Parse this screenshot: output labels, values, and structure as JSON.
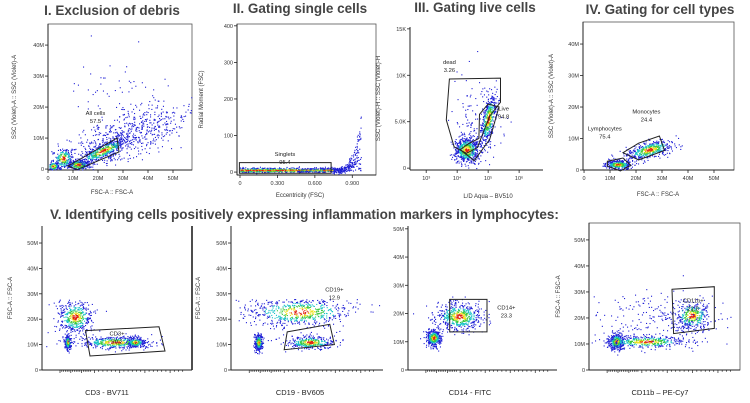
{
  "figure": {
    "section_v_title": "V. Identifying cells positively expressing inflammation markers in lymphocytes:"
  },
  "colors": {
    "density_low": "#1f1fd6",
    "density_mid": "#19c2c8",
    "density_midhigh": "#3cc83c",
    "density_high": "#f0e020",
    "density_peak": "#e02010",
    "gate": "#222222",
    "title": "#444444"
  },
  "chart_data": [
    {
      "type": "scatter",
      "title": "I. Exclusion of debris",
      "xlabel": "FSC-A :: FSC-A",
      "ylabel": "SSC (Violet)-A :: SSC (Violet)-A",
      "xscale": "linear",
      "xlim": [
        0,
        57.6
      ],
      "ylim": [
        -0.3,
        46.8
      ],
      "xticks": [
        {
          "value": 0,
          "label": "0"
        },
        {
          "value": 10,
          "label": "10M"
        },
        {
          "value": 20,
          "label": "20M"
        },
        {
          "value": 30,
          "label": "30M"
        },
        {
          "value": 40,
          "label": "40M"
        },
        {
          "value": 50,
          "label": "50M"
        }
      ],
      "yticks": [
        {
          "value": 0,
          "label": "0"
        },
        {
          "value": 10,
          "label": "10M"
        },
        {
          "value": 20,
          "label": "20M"
        },
        {
          "value": 30,
          "label": "30M"
        },
        {
          "value": 40,
          "label": "40M"
        }
      ],
      "gates": [
        {
          "name": "All cells",
          "value": "57.5"
        }
      ]
    },
    {
      "type": "scatter",
      "title": "II. Gating single cells",
      "xlabel": "Eccentricity (FSC)",
      "ylabel": "Radial Moment (FSC)",
      "xscale": "linear",
      "xlim": [
        -0.024,
        1.09
      ],
      "ylim": [
        -8,
        405
      ],
      "xticks": [
        {
          "value": 0,
          "label": "0"
        },
        {
          "value": 0.3,
          "label": "0.300"
        },
        {
          "value": 0.6,
          "label": "0.600"
        },
        {
          "value": 0.9,
          "label": "0.900"
        }
      ],
      "yticks": [
        {
          "value": 0,
          "label": "0"
        },
        {
          "value": 100,
          "label": "100"
        },
        {
          "value": 200,
          "label": "200"
        },
        {
          "value": 300,
          "label": "300"
        },
        {
          "value": 400,
          "label": "400"
        }
      ],
      "gates": [
        {
          "name": "Singlets",
          "value": "95.4"
        }
      ]
    },
    {
      "type": "scatter",
      "title": "III. Gating live cells",
      "xlabel": "L/D Aqua – BV510",
      "ylabel": "SSC (Violet)-H :: SSC (Violet)-H",
      "xscale": "log",
      "xlim": [
        300,
        5900000
      ],
      "ylim": [
        -0.2,
        15.2
      ],
      "xticks": [
        {
          "value": 1000,
          "label": "10³"
        },
        {
          "value": 10000,
          "label": "10⁴"
        },
        {
          "value": 100000,
          "label": "10⁵"
        },
        {
          "value": 1000000,
          "label": "10⁶"
        }
      ],
      "yticks": [
        {
          "value": 0,
          "label": "0"
        },
        {
          "value": 5,
          "label": "5.0K"
        },
        {
          "value": 10,
          "label": "10K"
        },
        {
          "value": 15,
          "label": "15K"
        }
      ],
      "gates": [
        {
          "name": "dead",
          "value": "3.26"
        },
        {
          "name": "Live",
          "value": "94.8"
        }
      ]
    },
    {
      "type": "scatter",
      "title": "IV. Gating for cell types",
      "xlabel": "FSC-A :: FSC-A",
      "ylabel": "SSC (Violet)-A :: SSC (Violet)-A",
      "xscale": "linear",
      "xlim": [
        -0.4,
        57.7
      ],
      "ylim": [
        0,
        47
      ],
      "xticks": [
        {
          "value": 0,
          "label": "0"
        },
        {
          "value": 10,
          "label": "10M"
        },
        {
          "value": 20,
          "label": "20M"
        },
        {
          "value": 30,
          "label": "30M"
        },
        {
          "value": 40,
          "label": "40M"
        },
        {
          "value": 50,
          "label": "50M"
        }
      ],
      "yticks": [
        {
          "value": 0,
          "label": "0"
        },
        {
          "value": 10,
          "label": "10M"
        },
        {
          "value": 20,
          "label": "20M"
        },
        {
          "value": 30,
          "label": "30M"
        },
        {
          "value": 40,
          "label": "40M"
        }
      ],
      "gates": [
        {
          "name": "Lymphocytes",
          "value": "75.4"
        },
        {
          "name": "Monocytes",
          "value": "24.4"
        }
      ]
    },
    {
      "type": "scatter",
      "title": "",
      "xlabel": "CD3 - BV711",
      "ylabel": "FSC-A :: FSC-A",
      "xscale": "biexponential",
      "ylim": [
        0,
        56.7
      ],
      "yticks": [
        {
          "value": 0,
          "label": "0"
        },
        {
          "value": 10,
          "label": "10M"
        },
        {
          "value": 20,
          "label": "20M"
        },
        {
          "value": 30,
          "label": "30M"
        },
        {
          "value": 40,
          "label": "40M"
        },
        {
          "value": 50,
          "label": "50M"
        }
      ],
      "gates": [
        {
          "name": "CD3+",
          "value": "59.2"
        }
      ]
    },
    {
      "type": "scatter",
      "title": "",
      "xlabel": "CD19 - BV605",
      "ylabel": "FSC-A :: FSC-A",
      "xscale": "biexponential",
      "ylim": [
        0,
        56.7
      ],
      "yticks": [
        {
          "value": 0,
          "label": "0"
        },
        {
          "value": 10,
          "label": "10M"
        },
        {
          "value": 20,
          "label": "20M"
        },
        {
          "value": 30,
          "label": "30M"
        },
        {
          "value": 40,
          "label": "40M"
        },
        {
          "value": 50,
          "label": "50M"
        }
      ],
      "gates": [
        {
          "name": "CD19+",
          "value": "12.9"
        }
      ]
    },
    {
      "type": "scatter",
      "title": "",
      "xlabel": "CD14 - FITC",
      "ylabel": "",
      "xscale": "biexponential",
      "ylim": [
        0,
        51
      ],
      "yticks": [
        {
          "value": 0,
          "label": "0"
        },
        {
          "value": 10,
          "label": "10M"
        },
        {
          "value": 20,
          "label": "20M"
        },
        {
          "value": 30,
          "label": "30M"
        },
        {
          "value": 40,
          "label": "40M"
        },
        {
          "value": 50,
          "label": "50M"
        }
      ],
      "gates": [
        {
          "name": "CD14+",
          "value": "23.3"
        }
      ]
    },
    {
      "type": "scatter",
      "title": "",
      "xlabel": "CD11b – PE-Cy7",
      "ylabel": "FSC-A :: FSC-A",
      "xscale": "biexponential",
      "ylim": [
        0,
        56.5
      ],
      "yticks": [
        {
          "value": 0,
          "label": "0"
        },
        {
          "value": 10,
          "label": "10M"
        },
        {
          "value": 20,
          "label": "20M"
        },
        {
          "value": 30,
          "label": "30M"
        },
        {
          "value": 40,
          "label": "40M"
        },
        {
          "value": 50,
          "label": "50M"
        }
      ],
      "gates": [
        {
          "name": "CD11b+",
          "value": "22.8"
        }
      ]
    }
  ]
}
